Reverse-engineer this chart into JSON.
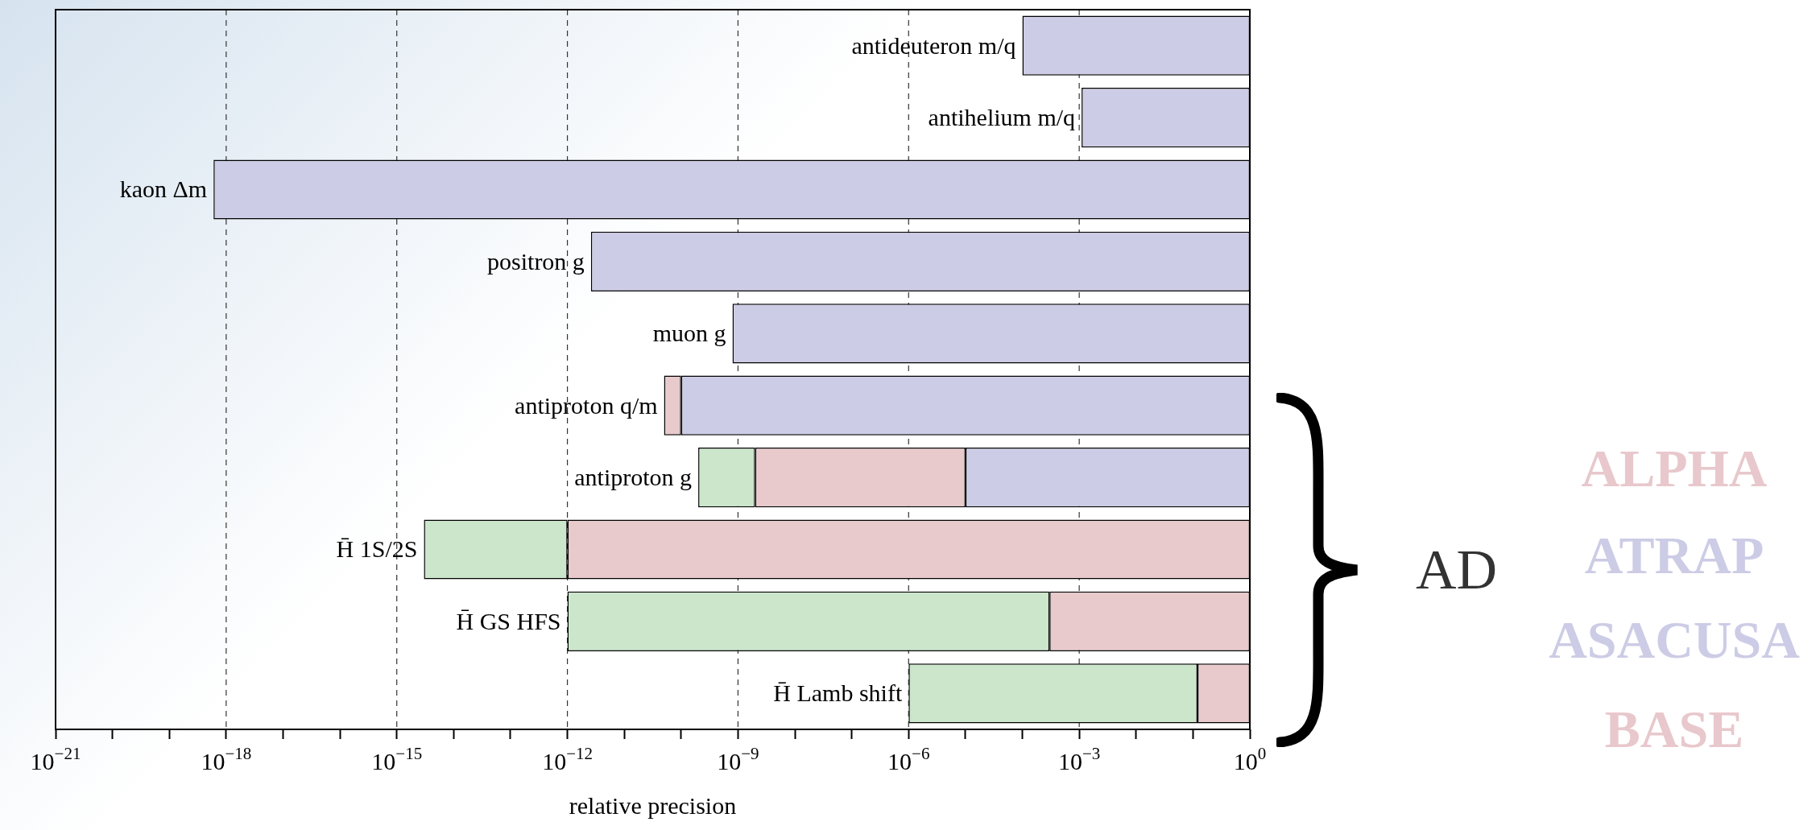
{
  "chart_data": {
    "type": "bar",
    "orientation": "horizontal",
    "log": "x",
    "grid": "x",
    "xlabel": "relative precision",
    "categories": [
      "antideuteron m/q",
      "antihelium m/q",
      "kaon Δm",
      "positron g",
      "muon g",
      "antiproton q/m",
      "antiproton g",
      "H̄ 1S/2S",
      "H̄ GS HFS",
      "H̄ Lamb shift"
    ],
    "xlim": [
      1e-21,
      1
    ],
    "xticks": [
      {
        "value": 1e-21,
        "label": "10$^{−21}$"
      },
      {
        "value": 1e-20,
        "label": null
      },
      {
        "value": 1e-19,
        "label": null
      },
      {
        "value": 1e-18,
        "label": "10$^{−18}$"
      },
      {
        "value": 1e-17,
        "label": null
      },
      {
        "value": 1e-16,
        "label": null
      },
      {
        "value": 1e-15,
        "label": "10$^{−15}$"
      },
      {
        "value": 1e-14,
        "label": null
      },
      {
        "value": 1e-13,
        "label": null
      },
      {
        "value": 1e-12,
        "label": "10$^{−12}$"
      },
      {
        "value": 1e-11,
        "label": null
      },
      {
        "value": 1e-10,
        "label": null
      },
      {
        "value": 1e-09,
        "label": "10$^{−9}$"
      },
      {
        "value": 1e-08,
        "label": null
      },
      {
        "value": 1e-07,
        "label": null
      },
      {
        "value": 1e-06,
        "label": "10$^{−6}$"
      },
      {
        "value": 1e-05,
        "label": null
      },
      {
        "value": 0.0001,
        "label": null
      },
      {
        "value": 0.001,
        "label": "10$^{−3}$"
      },
      {
        "value": 0.01,
        "label": null
      },
      {
        "value": 0.1,
        "label": null
      },
      {
        "value": 1,
        "label": "10$^{0}$"
      }
    ],
    "series": [
      {
        "color": "#cccce6",
        "base": [
          0.0001,
          0.0011,
          6e-19,
          2.6e-12,
          8e-10,
          1e-10,
          1e-05,
          null,
          null,
          null
        ],
        "values": [
          0.9999,
          0.9989,
          1,
          1,
          1,
          1,
          0.99999,
          null,
          null,
          null
        ]
      },
      {
        "color": "#e8cacc",
        "base": [
          null,
          null,
          null,
          null,
          null,
          5e-11,
          2e-09,
          1e-12,
          0.0003,
          0.12
        ],
        "values": [
          null,
          null,
          null,
          null,
          null,
          5e-11,
          1e-05,
          1,
          0.9997,
          0.88
        ]
      },
      {
        "color": "#cce6cc",
        "base": [
          null,
          null,
          null,
          null,
          null,
          null,
          2e-10,
          3e-15,
          1e-12,
          1e-06
        ],
        "values": [
          null,
          null,
          null,
          null,
          null,
          null,
          1.8e-09,
          1e-12,
          0.0003,
          0.12
        ]
      }
    ],
    "annotations": [
      "AD",
      "ALPHA",
      "ATRAP",
      "ASACUSA",
      "BASE"
    ]
  }
}
